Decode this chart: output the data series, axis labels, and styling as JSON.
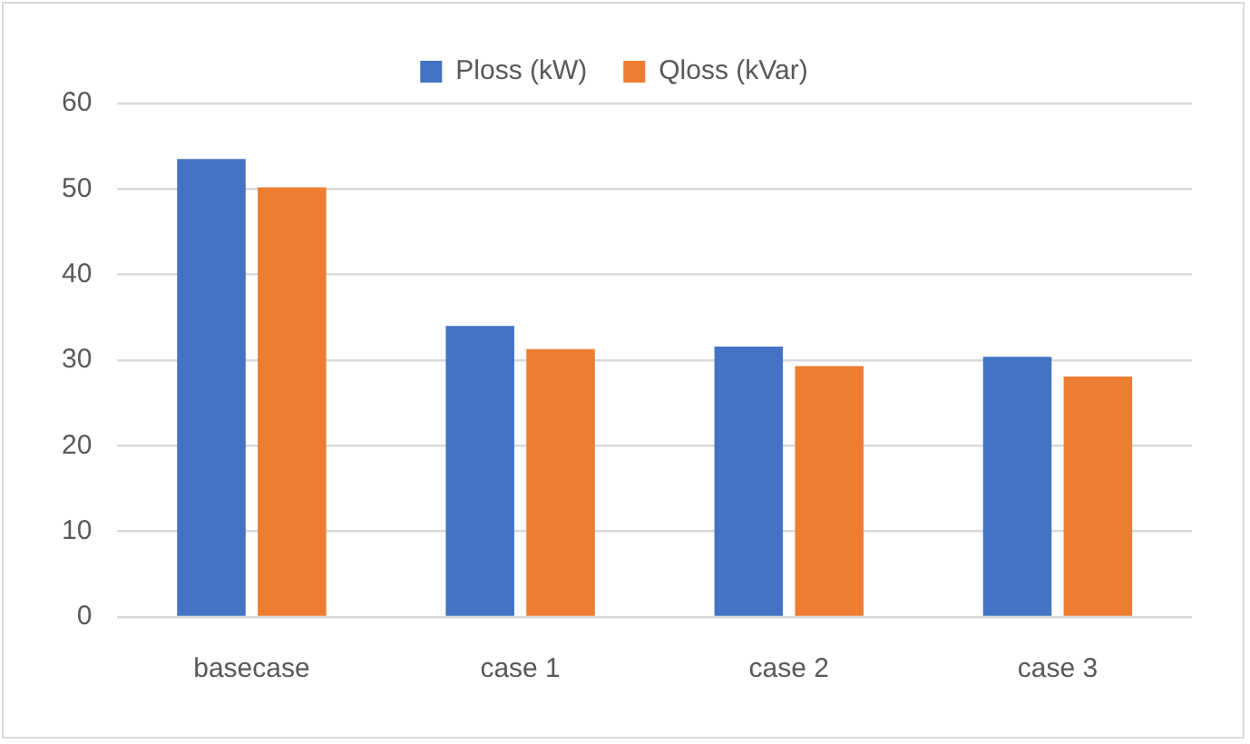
{
  "chart_data": {
    "type": "bar",
    "categories": [
      "basecase",
      "case 1",
      "case 2",
      "case 3"
    ],
    "series": [
      {
        "name": "Ploss (kW)",
        "color": "#4472c4",
        "values": [
          53.5,
          34.0,
          31.6,
          30.4
        ]
      },
      {
        "name": "Qloss (kVar)",
        "color": "#ed7d31",
        "values": [
          50.2,
          31.3,
          29.3,
          28.1
        ]
      }
    ],
    "ylim": [
      0,
      60
    ],
    "yticks": [
      0,
      10,
      20,
      30,
      40,
      50,
      60
    ],
    "grid": "y",
    "legend": "top"
  }
}
